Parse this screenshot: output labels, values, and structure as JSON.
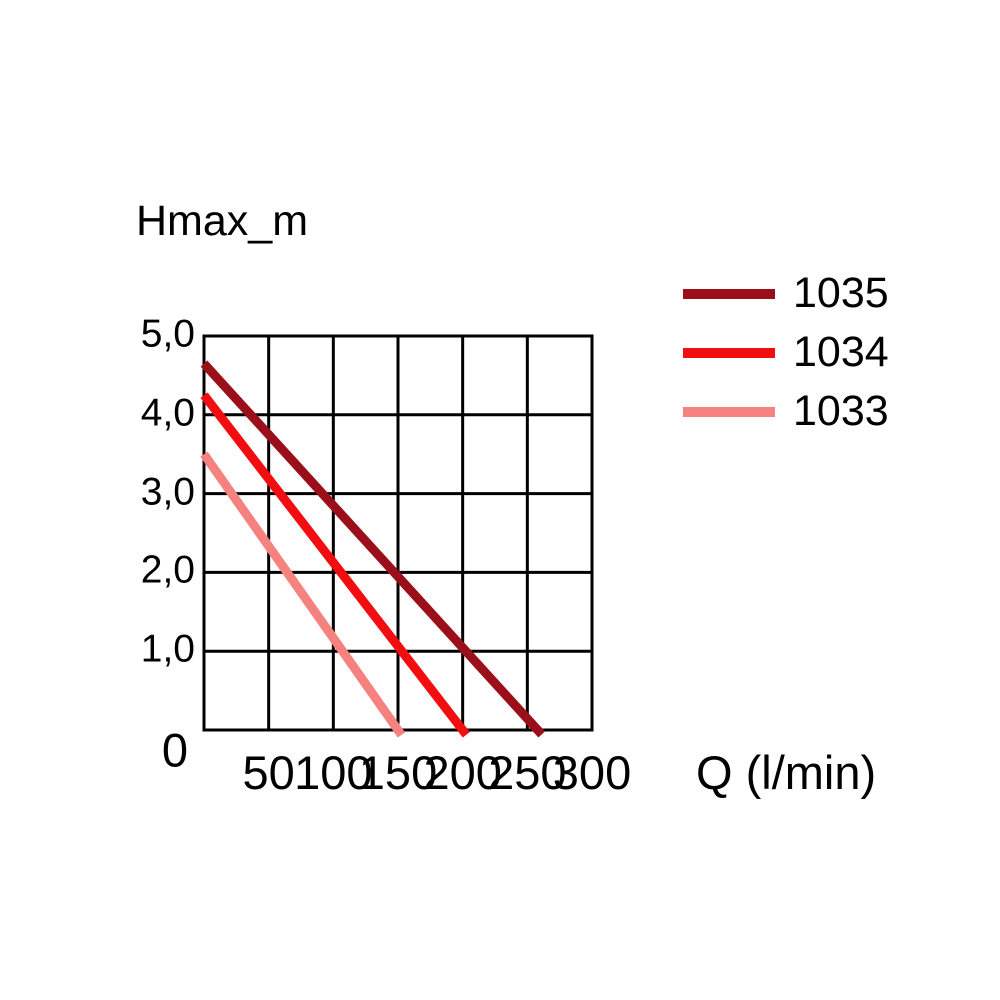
{
  "chart_data": {
    "type": "line",
    "title": "",
    "ylabel": "Hmax_m",
    "xlabel": "Q (l/min)",
    "xlim": [
      0,
      300
    ],
    "ylim": [
      0,
      5
    ],
    "grid": true,
    "legend_position": "top-right",
    "x_ticks": [
      50,
      100,
      150,
      200,
      250,
      300
    ],
    "x_tick_labels": [
      "50",
      "100",
      "150",
      "200",
      "250",
      "300"
    ],
    "y_ticks": [
      5,
      4,
      3,
      2,
      1,
      0
    ],
    "y_tick_labels": [
      "5,0",
      "4,0",
      "3,0",
      "2,0",
      "1,0",
      "0"
    ],
    "axis_color": "#000000",
    "background": "#FFFFFF",
    "series": [
      {
        "name": "1035",
        "color": "#9B0F1B",
        "hmax_m": 4.65,
        "qmax_l_min": 258,
        "points": [
          [
            0,
            4.65
          ],
          [
            258,
            0
          ]
        ]
      },
      {
        "name": "1034",
        "color": "#F20D11",
        "hmax_m": 4.25,
        "qmax_l_min": 200,
        "points": [
          [
            0,
            4.25
          ],
          [
            200,
            0
          ]
        ]
      },
      {
        "name": "1033",
        "color": "#F5827E",
        "hmax_m": 3.5,
        "qmax_l_min": 150,
        "points": [
          [
            0,
            3.5
          ],
          [
            150,
            0
          ]
        ]
      }
    ]
  }
}
